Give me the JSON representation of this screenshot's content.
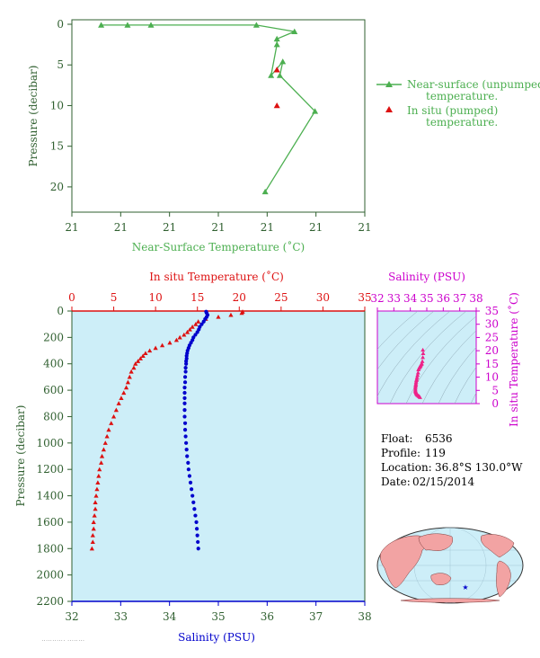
{
  "colors": {
    "axis_green": "#2f5f2f",
    "near_surface": "#4caf50",
    "temp_red": "#dd1111",
    "salinity_blue": "#0000cc",
    "tsal_magenta": "#cc00cc",
    "tsal_points": "#ee2288",
    "plot_bg": "#cdeef8",
    "land": "#f2a3a3",
    "ocean": "#cdeef8"
  },
  "info": {
    "float_label": "Float:",
    "float": "6536",
    "profile_label": "Profile:",
    "profile": "119",
    "location_label": "Location:",
    "location": "36.8°S  130.0°W",
    "date_label": "Date:",
    "date": "02/15/2014"
  },
  "footer_note": "··········· ········",
  "chart_data": [
    {
      "id": "near-surface",
      "type": "line",
      "xlabel": "Near-Surface Temperature (˚C)",
      "ylabel": "Pressure (decibar)",
      "xticks": [
        "21",
        "21",
        "21",
        "21",
        "21",
        "21",
        "21"
      ],
      "ylim": [
        0,
        22
      ],
      "y_reversed": true,
      "yticks": [
        0,
        5,
        10,
        15,
        20
      ],
      "legend_position": "right",
      "series": [
        {
          "name": "Near-surface (unpumped)",
          "name_line2": "temperature.",
          "marker": "triangle",
          "points": [
            [
              0.66,
              20.6
            ],
            [
              0.83,
              10.7
            ],
            [
              0.71,
              6.3
            ],
            [
              0.72,
              4.6
            ],
            [
              0.68,
              6.3
            ],
            [
              0.7,
              2.5
            ],
            [
              0.7,
              1.8
            ],
            [
              0.76,
              0.9
            ],
            [
              0.63,
              0.1
            ],
            [
              0.27,
              0.1
            ],
            [
              0.19,
              0.1
            ],
            [
              0.1,
              0.1
            ]
          ]
        },
        {
          "name": "In situ (pumped)",
          "name_line2": "temperature.",
          "marker": "triangle",
          "points": [
            [
              0.7,
              5.6
            ],
            [
              0.7,
              10.0
            ]
          ]
        }
      ]
    },
    {
      "id": "profile",
      "type": "scatter",
      "top_xlabel": "In situ Temperature (˚C)",
      "top_xlim": [
        0,
        35
      ],
      "top_xticks": [
        0,
        5,
        10,
        15,
        20,
        25,
        30,
        35
      ],
      "bottom_xlabel": "Salinity (PSU)",
      "bottom_xlim": [
        32,
        38
      ],
      "bottom_xticks": [
        32,
        33,
        34,
        35,
        36,
        37,
        38
      ],
      "ylabel": "Pressure (decibar)",
      "ylim": [
        0,
        2200
      ],
      "y_reversed": true,
      "yticks": [
        0,
        200,
        400,
        600,
        800,
        1000,
        1200,
        1400,
        1600,
        1800,
        2000,
        2200
      ],
      "temperature": [
        [
          20.4,
          5
        ],
        [
          20.3,
          15
        ],
        [
          19.0,
          30
        ],
        [
          17.5,
          45
        ],
        [
          16.0,
          60
        ],
        [
          15.1,
          80
        ],
        [
          14.8,
          100
        ],
        [
          14.4,
          120
        ],
        [
          14.1,
          140
        ],
        [
          13.8,
          160
        ],
        [
          13.4,
          180
        ],
        [
          12.9,
          200
        ],
        [
          12.5,
          220
        ],
        [
          11.7,
          240
        ],
        [
          10.8,
          260
        ],
        [
          10.0,
          280
        ],
        [
          9.3,
          300
        ],
        [
          8.8,
          320
        ],
        [
          8.5,
          340
        ],
        [
          8.2,
          360
        ],
        [
          7.9,
          380
        ],
        [
          7.6,
          400
        ],
        [
          7.4,
          430
        ],
        [
          7.1,
          460
        ],
        [
          6.9,
          500
        ],
        [
          6.7,
          540
        ],
        [
          6.5,
          580
        ],
        [
          6.2,
          620
        ],
        [
          5.9,
          660
        ],
        [
          5.6,
          700
        ],
        [
          5.3,
          750
        ],
        [
          5.0,
          800
        ],
        [
          4.7,
          850
        ],
        [
          4.4,
          900
        ],
        [
          4.2,
          950
        ],
        [
          4.0,
          1000
        ],
        [
          3.8,
          1050
        ],
        [
          3.6,
          1100
        ],
        [
          3.5,
          1150
        ],
        [
          3.3,
          1200
        ],
        [
          3.2,
          1250
        ],
        [
          3.1,
          1300
        ],
        [
          3.0,
          1350
        ],
        [
          2.9,
          1400
        ],
        [
          2.8,
          1450
        ],
        [
          2.8,
          1500
        ],
        [
          2.7,
          1550
        ],
        [
          2.6,
          1600
        ],
        [
          2.6,
          1650
        ],
        [
          2.5,
          1700
        ],
        [
          2.5,
          1750
        ],
        [
          2.4,
          1800
        ]
      ],
      "salinity": [
        [
          34.75,
          5
        ],
        [
          34.76,
          15
        ],
        [
          34.78,
          30
        ],
        [
          34.76,
          45
        ],
        [
          34.73,
          60
        ],
        [
          34.7,
          80
        ],
        [
          34.66,
          100
        ],
        [
          34.62,
          120
        ],
        [
          34.6,
          140
        ],
        [
          34.57,
          160
        ],
        [
          34.53,
          180
        ],
        [
          34.49,
          200
        ],
        [
          34.47,
          220
        ],
        [
          34.44,
          240
        ],
        [
          34.41,
          260
        ],
        [
          34.39,
          280
        ],
        [
          34.37,
          300
        ],
        [
          34.36,
          320
        ],
        [
          34.35,
          340
        ],
        [
          34.35,
          360
        ],
        [
          34.34,
          380
        ],
        [
          34.34,
          400
        ],
        [
          34.33,
          430
        ],
        [
          34.33,
          460
        ],
        [
          34.32,
          500
        ],
        [
          34.32,
          540
        ],
        [
          34.31,
          580
        ],
        [
          34.31,
          620
        ],
        [
          34.31,
          660
        ],
        [
          34.31,
          700
        ],
        [
          34.31,
          750
        ],
        [
          34.31,
          800
        ],
        [
          34.32,
          850
        ],
        [
          34.32,
          900
        ],
        [
          34.33,
          950
        ],
        [
          34.34,
          1000
        ],
        [
          34.35,
          1050
        ],
        [
          34.36,
          1100
        ],
        [
          34.38,
          1150
        ],
        [
          34.39,
          1200
        ],
        [
          34.41,
          1250
        ],
        [
          34.43,
          1300
        ],
        [
          34.45,
          1350
        ],
        [
          34.47,
          1400
        ],
        [
          34.49,
          1450
        ],
        [
          34.51,
          1500
        ],
        [
          34.53,
          1550
        ],
        [
          34.55,
          1600
        ],
        [
          34.56,
          1650
        ],
        [
          34.57,
          1700
        ],
        [
          34.58,
          1750
        ],
        [
          34.59,
          1800
        ]
      ]
    },
    {
      "id": "ts-diagram",
      "type": "scatter",
      "xlabel": "Salinity (PSU)",
      "xlim": [
        32,
        38
      ],
      "xticks": [
        32,
        33,
        34,
        35,
        36,
        37,
        38
      ],
      "ylabel": "In situ Temperature (˚C)",
      "ylim": [
        0,
        35
      ],
      "yticks": [
        0,
        5,
        10,
        15,
        20,
        25,
        30,
        35
      ],
      "points": [
        [
          34.59,
          2.4
        ],
        [
          34.55,
          2.7
        ],
        [
          34.51,
          2.9
        ],
        [
          34.47,
          3.1
        ],
        [
          34.43,
          3.3
        ],
        [
          34.4,
          3.5
        ],
        [
          34.37,
          3.8
        ],
        [
          34.35,
          4.0
        ],
        [
          34.33,
          4.4
        ],
        [
          34.32,
          4.7
        ],
        [
          34.31,
          5.0
        ],
        [
          34.31,
          5.6
        ],
        [
          34.31,
          6.2
        ],
        [
          34.32,
          6.7
        ],
        [
          34.33,
          7.1
        ],
        [
          34.34,
          7.6
        ],
        [
          34.35,
          8.2
        ],
        [
          34.37,
          8.8
        ],
        [
          34.39,
          9.3
        ],
        [
          34.41,
          10.0
        ],
        [
          34.44,
          10.8
        ],
        [
          34.47,
          11.7
        ],
        [
          34.49,
          12.9
        ],
        [
          34.53,
          13.4
        ],
        [
          34.57,
          13.8
        ],
        [
          34.6,
          14.1
        ],
        [
          34.62,
          14.4
        ],
        [
          34.66,
          14.8
        ],
        [
          34.7,
          15.1
        ],
        [
          34.73,
          16.0
        ],
        [
          34.76,
          17.5
        ],
        [
          34.78,
          19.0
        ],
        [
          34.76,
          20.3
        ]
      ]
    }
  ]
}
